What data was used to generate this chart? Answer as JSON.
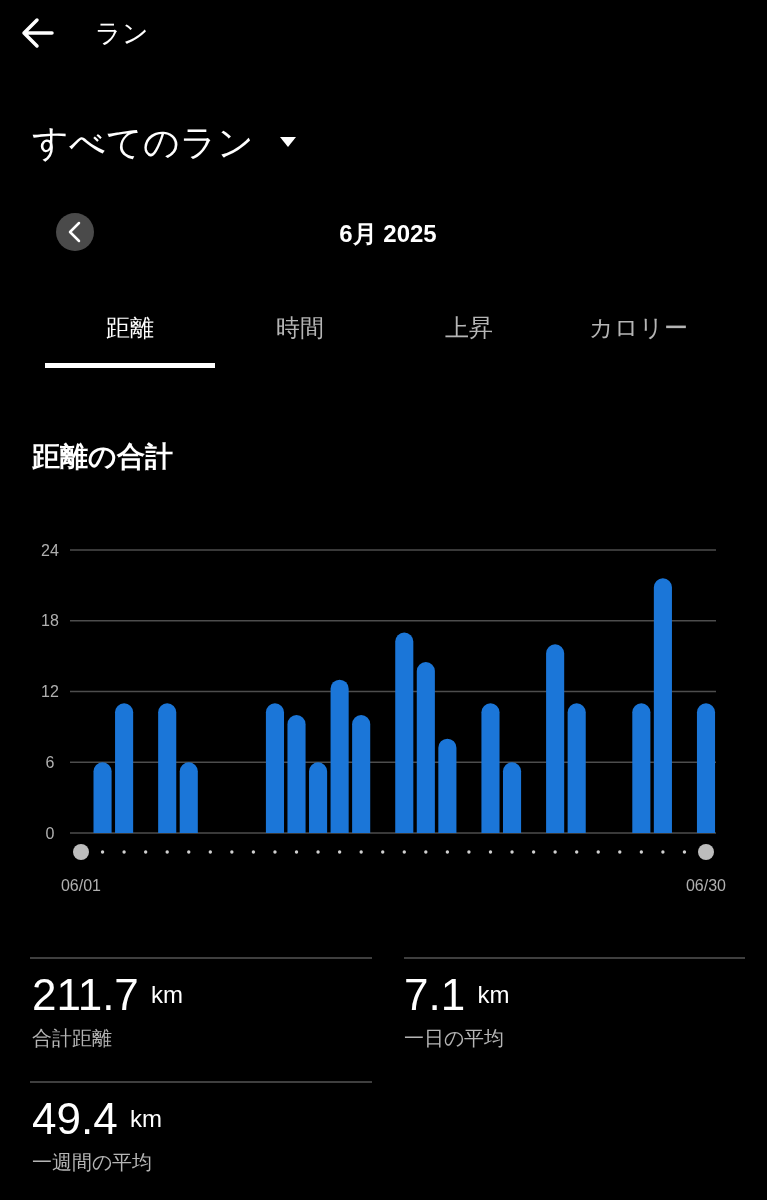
{
  "chart_data": {
    "type": "bar",
    "title": "距離の合計",
    "categories": [
      "06/01",
      null,
      null,
      null,
      null,
      null,
      null,
      null,
      null,
      null,
      null,
      null,
      null,
      null,
      null,
      null,
      null,
      null,
      null,
      null,
      null,
      null,
      null,
      null,
      null,
      null,
      null,
      null,
      null,
      "06/30"
    ],
    "values": [
      null,
      6,
      11,
      null,
      11,
      6,
      null,
      null,
      null,
      11,
      10,
      6,
      13,
      10,
      null,
      17,
      14.5,
      8,
      null,
      11,
      6,
      null,
      16,
      11,
      null,
      null,
      11,
      21.6,
      null,
      11
    ],
    "color": "#1b76d8",
    "ylim": [
      0,
      24
    ],
    "yticks": [
      0,
      6,
      12,
      18,
      24
    ],
    "grid": "y",
    "annotations": [
      "ラン",
      "すべてのラン",
      "6月 2025",
      "距離",
      "時間",
      "上昇",
      "カロリー",
      "211.7 km",
      "合計距離",
      "7.1 km",
      "一日の平均",
      "49.4 km",
      "一週間の平均"
    ]
  }
}
